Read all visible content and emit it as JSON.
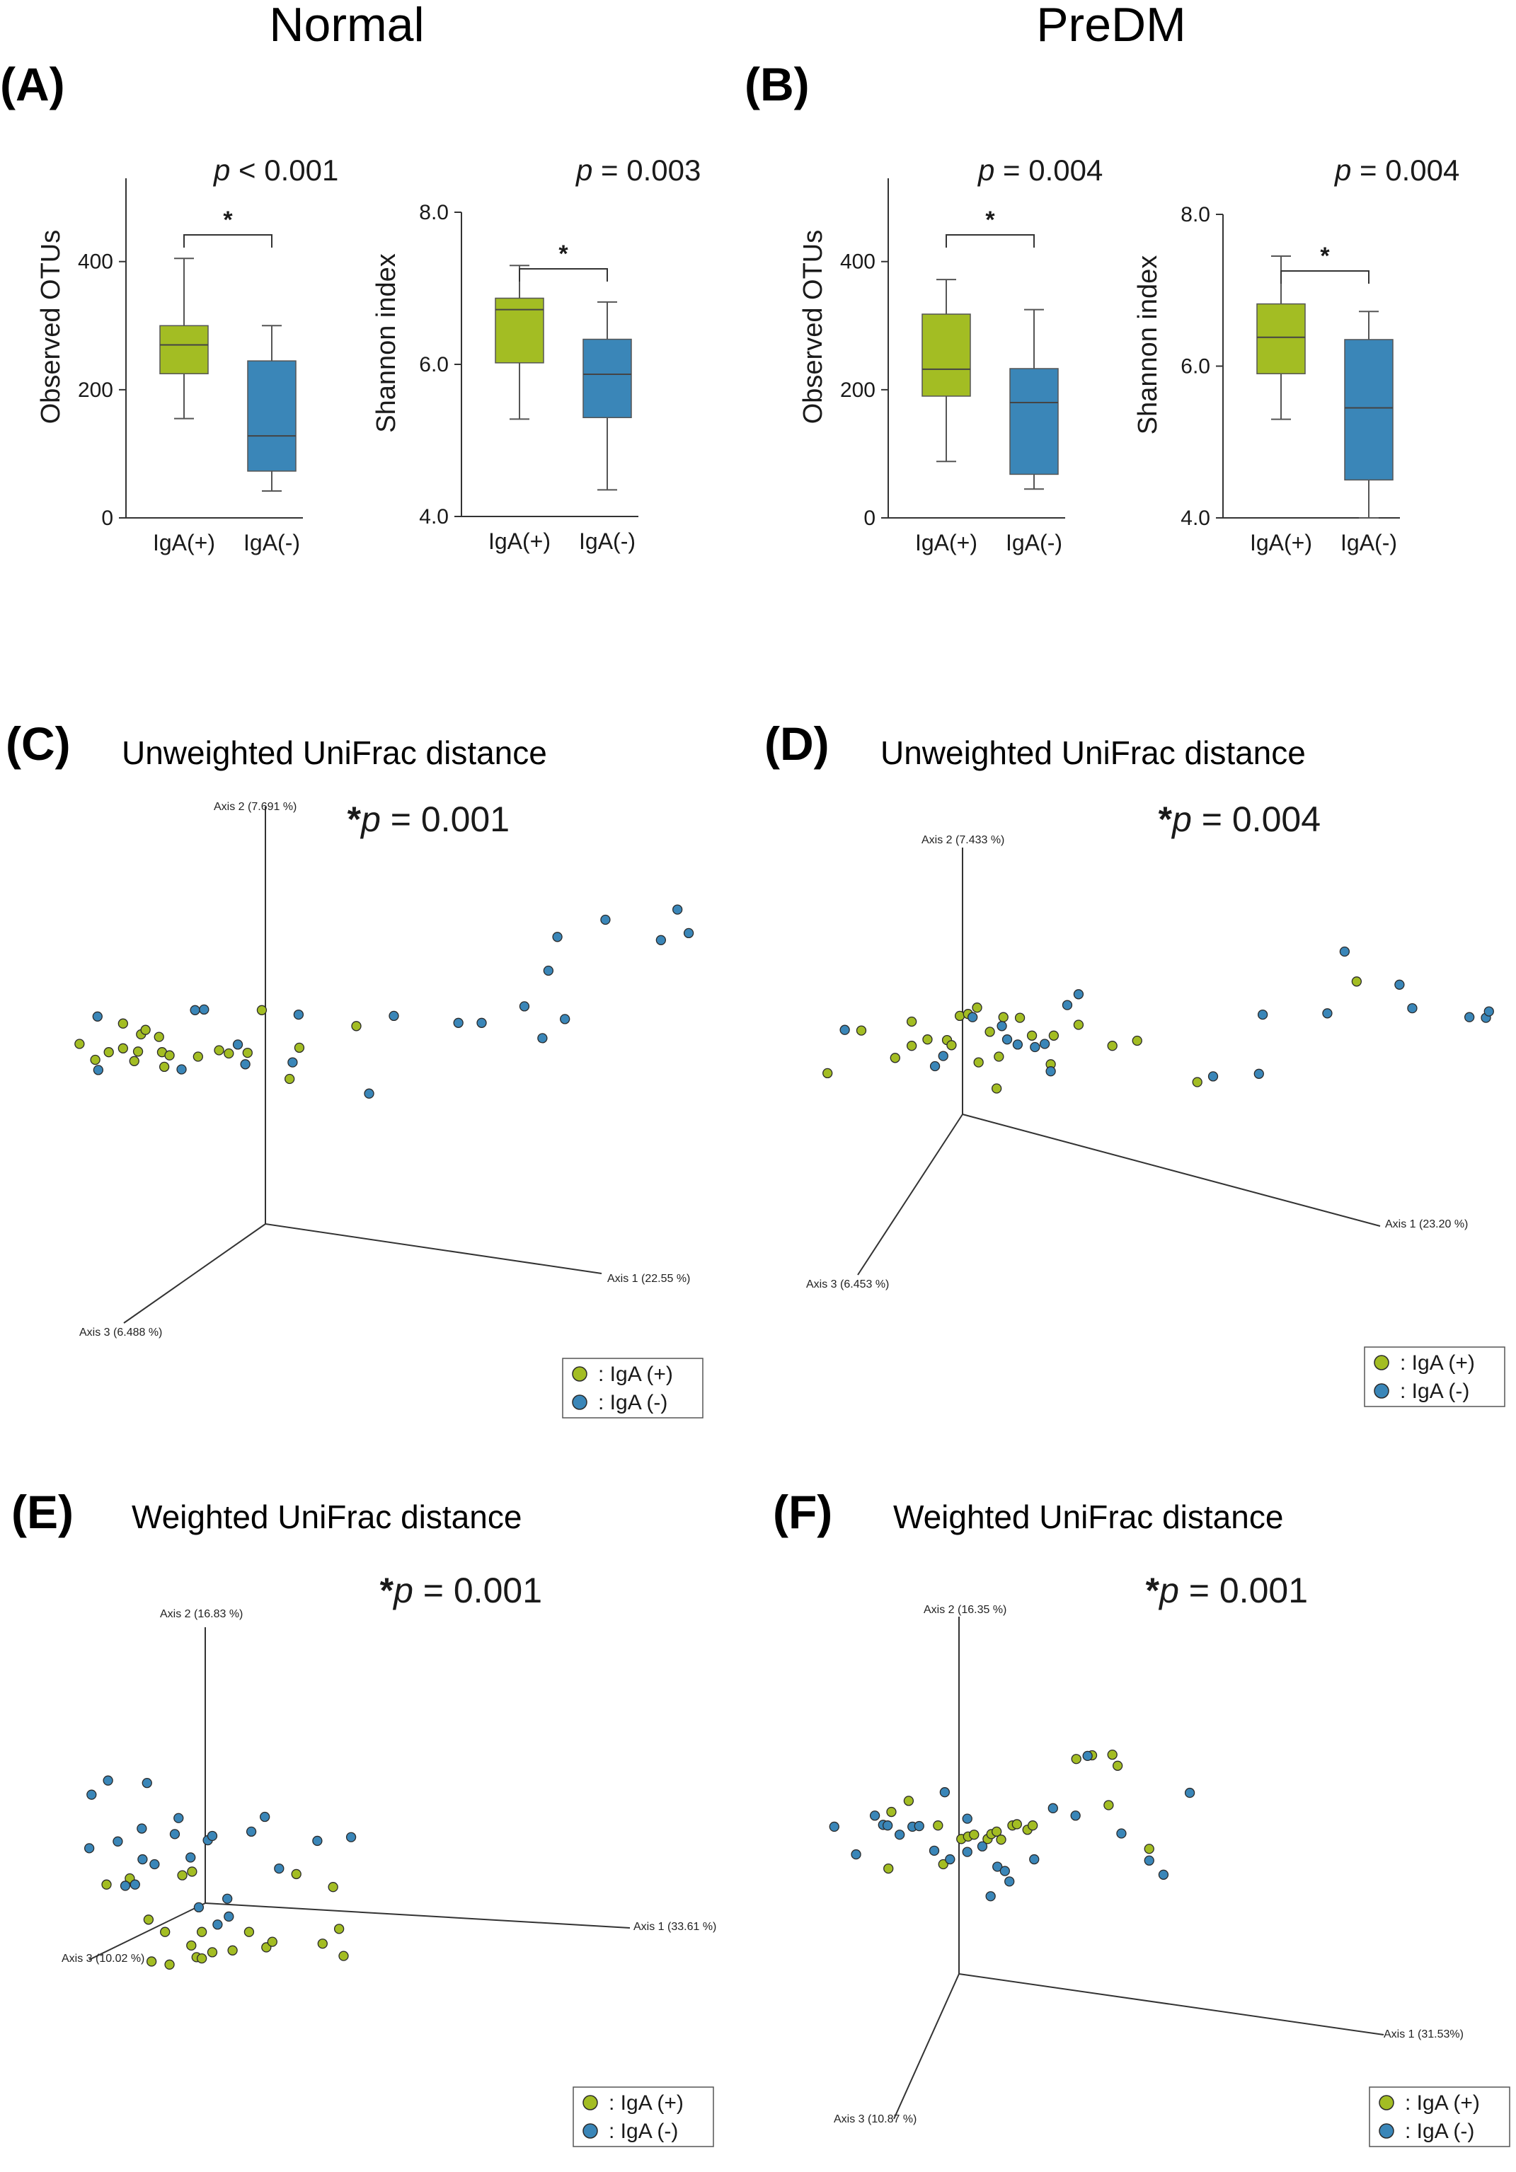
{
  "group_titles": {
    "normal": "Normal",
    "predm": "PreDM"
  },
  "panel_letters": {
    "A": "(A)",
    "B": "(B)",
    "C": "(C)",
    "D": "(D)",
    "E": "(E)",
    "F": "(F)"
  },
  "colors": {
    "iga_pos": "#a3bd23",
    "iga_neg": "#3a86b8",
    "axis": "#333333",
    "text": "#1a1a1a"
  },
  "legend": {
    "pos_label": ": IgA (+)",
    "neg_label": ": IgA (-)"
  },
  "chart_data": [
    {
      "id": "A-observed",
      "type": "box",
      "title": "",
      "ylabel": "Observed OTUs",
      "xlabel": "",
      "ylim": [
        0,
        530
      ],
      "yticks": [
        0,
        200,
        400
      ],
      "ytick_labels": [
        "0",
        "200",
        "400"
      ],
      "p_prefix": "p",
      "p_text": " < 0.001",
      "significance": "*",
      "categories": [
        "IgA(+)",
        "IgA(-)"
      ],
      "boxes": [
        {
          "name": "IgA(+)",
          "whisker_low": 155,
          "q1": 225,
          "median": 270,
          "q3": 300,
          "whisker_high": 405
        },
        {
          "name": "IgA(-)",
          "whisker_low": 42,
          "q1": 73,
          "median": 128,
          "q3": 245,
          "whisker_high": 300
        }
      ]
    },
    {
      "id": "A-shannon",
      "type": "box",
      "title": "",
      "ylabel": "Shannon index",
      "xlabel": "",
      "ylim": [
        4.0,
        8.0
      ],
      "yticks": [
        4.0,
        6.0,
        8.0
      ],
      "ytick_labels": [
        "4.0",
        "6.0",
        "8.0"
      ],
      "p_prefix": "p",
      "p_text": " = 0.003",
      "significance": "*",
      "categories": [
        "IgA(+)",
        "IgA(-)"
      ],
      "boxes": [
        {
          "name": "IgA(+)",
          "whisker_low": 5.28,
          "q1": 6.02,
          "median": 6.72,
          "q3": 6.87,
          "whisker_high": 7.3
        },
        {
          "name": "IgA(-)",
          "whisker_low": 4.35,
          "q1": 5.3,
          "median": 5.87,
          "q3": 6.33,
          "whisker_high": 6.82
        }
      ]
    },
    {
      "id": "B-observed",
      "type": "box",
      "title": "",
      "ylabel": "Observed OTUs",
      "xlabel": "",
      "ylim": [
        0,
        530
      ],
      "yticks": [
        0,
        200,
        400
      ],
      "ytick_labels": [
        "0",
        "200",
        "400"
      ],
      "p_prefix": "p",
      "p_text": " = 0.004",
      "significance": "*",
      "categories": [
        "IgA(+)",
        "IgA(-)"
      ],
      "boxes": [
        {
          "name": "IgA(+)",
          "whisker_low": 88,
          "q1": 190,
          "median": 232,
          "q3": 318,
          "whisker_high": 372
        },
        {
          "name": "IgA(-)",
          "whisker_low": 45,
          "q1": 68,
          "median": 180,
          "q3": 233,
          "whisker_high": 325
        }
      ]
    },
    {
      "id": "B-shannon",
      "type": "box",
      "title": "",
      "ylabel": "Shannon index",
      "xlabel": "",
      "ylim": [
        4.0,
        8.0
      ],
      "yticks": [
        4.0,
        6.0,
        8.0
      ],
      "ytick_labels": [
        "4.0",
        "6.0",
        "8.0"
      ],
      "p_prefix": "p",
      "p_text": " = 0.004",
      "significance": "*",
      "categories": [
        "IgA(+)",
        "IgA(-)"
      ],
      "boxes": [
        {
          "name": "IgA(+)",
          "whisker_low": 5.3,
          "q1": 5.9,
          "median": 6.38,
          "q3": 6.82,
          "whisker_high": 7.45
        },
        {
          "name": "IgA(-)",
          "whisker_low": 4.0,
          "q1": 4.5,
          "median": 5.45,
          "q3": 6.35,
          "whisker_high": 6.72
        }
      ]
    },
    {
      "id": "C",
      "type": "scatter",
      "projection": "3d-pcoa",
      "title": "Unweighted UniFrac distance",
      "p_prefix": "*p",
      "p_text": " = 0.001",
      "axes": {
        "axis1": "Axis 1 (22.55 %)",
        "axis2": "Axis 2 (7.691 %)",
        "axis3": "Axis 3 (6.488 %)"
      },
      "series": [
        {
          "name": "IgA (+)",
          "points": [
            [
              0.106,
              0.605
            ],
            [
              0.127,
              0.58
            ],
            [
              0.145,
              0.592
            ],
            [
              0.164,
              0.637
            ],
            [
              0.164,
              0.598
            ],
            [
              0.179,
              0.578
            ],
            [
              0.184,
              0.593
            ],
            [
              0.188,
              0.62
            ],
            [
              0.194,
              0.627
            ],
            [
              0.212,
              0.616
            ],
            [
              0.216,
              0.592
            ],
            [
              0.219,
              0.569
            ],
            [
              0.226,
              0.587
            ],
            [
              0.264,
              0.585
            ],
            [
              0.292,
              0.595
            ],
            [
              0.305,
              0.59
            ],
            [
              0.33,
              0.591
            ],
            [
              0.349,
              0.658
            ],
            [
              0.386,
              0.55
            ],
            [
              0.399,
              0.599
            ],
            [
              0.475,
              0.633
            ]
          ]
        },
        {
          "name": "IgA (-)",
          "points": [
            [
              0.131,
              0.564
            ],
            [
              0.13,
              0.648
            ],
            [
              0.242,
              0.565
            ],
            [
              0.26,
              0.658
            ],
            [
              0.272,
              0.659
            ],
            [
              0.317,
              0.604
            ],
            [
              0.327,
              0.573
            ],
            [
              0.39,
              0.576
            ],
            [
              0.398,
              0.651
            ],
            [
              0.492,
              0.527
            ],
            [
              0.525,
              0.649
            ],
            [
              0.611,
              0.638
            ],
            [
              0.642,
              0.638
            ],
            [
              0.699,
              0.664
            ],
            [
              0.723,
              0.614
            ],
            [
              0.753,
              0.644
            ],
            [
              0.731,
              0.72
            ],
            [
              0.743,
              0.773
            ],
            [
              0.807,
              0.8
            ],
            [
              0.881,
              0.768
            ],
            [
              0.903,
              0.816
            ],
            [
              0.918,
              0.779
            ]
          ]
        }
      ]
    },
    {
      "id": "D",
      "type": "scatter",
      "projection": "3d-pcoa",
      "title": "Unweighted UniFrac distance",
      "p_prefix": "*p",
      "p_text": " = 0.004",
      "axes": {
        "axis1": "Axis 1 (23.20 %)",
        "axis2": "Axis 2 (7.433 %)",
        "axis3": "Axis 3 (6.453 %)"
      },
      "series": [
        {
          "name": "IgA (+)",
          "points": [
            [
              0.084,
              0.559
            ],
            [
              0.129,
              0.626
            ],
            [
              0.174,
              0.583
            ],
            [
              0.196,
              0.64
            ],
            [
              0.196,
              0.602
            ],
            [
              0.217,
              0.612
            ],
            [
              0.243,
              0.611
            ],
            [
              0.249,
              0.603
            ],
            [
              0.26,
              0.649
            ],
            [
              0.271,
              0.652
            ],
            [
              0.283,
              0.662
            ],
            [
              0.285,
              0.576
            ],
            [
              0.3,
              0.624
            ],
            [
              0.309,
              0.535
            ],
            [
              0.312,
              0.585
            ],
            [
              0.318,
              0.647
            ],
            [
              0.34,
              0.646
            ],
            [
              0.356,
              0.618
            ],
            [
              0.381,
              0.573
            ],
            [
              0.385,
              0.618
            ],
            [
              0.418,
              0.635
            ],
            [
              0.463,
              0.602
            ],
            [
              0.496,
              0.61
            ],
            [
              0.576,
              0.545
            ],
            [
              0.788,
              0.703
            ]
          ]
        },
        {
          "name": "IgA (-)",
          "points": [
            [
              0.107,
              0.627
            ],
            [
              0.227,
              0.57
            ],
            [
              0.238,
              0.586
            ],
            [
              0.277,
              0.647
            ],
            [
              0.316,
              0.633
            ],
            [
              0.323,
              0.612
            ],
            [
              0.337,
              0.604
            ],
            [
              0.36,
              0.6
            ],
            [
              0.373,
              0.605
            ],
            [
              0.381,
              0.562
            ],
            [
              0.403,
              0.666
            ],
            [
              0.418,
              0.683
            ],
            [
              0.597,
              0.554
            ],
            [
              0.658,
              0.558
            ],
            [
              0.663,
              0.651
            ],
            [
              0.749,
              0.653
            ],
            [
              0.772,
              0.75
            ],
            [
              0.845,
              0.698
            ],
            [
              0.862,
              0.661
            ],
            [
              0.938,
              0.647
            ],
            [
              0.96,
              0.646
            ],
            [
              0.964,
              0.656
            ]
          ]
        }
      ]
    },
    {
      "id": "E",
      "type": "scatter",
      "projection": "3d-pcoa",
      "title": "Weighted UniFrac distance",
      "p_prefix": "*p",
      "p_text": " = 0.001",
      "axes": {
        "axis1": "Axis 1 (33.61 %)",
        "axis2": "Axis 2 (16.83 %)",
        "axis3": "Axis 3 (10.02 %)"
      },
      "series": [
        {
          "name": "IgA (+)",
          "points": [
            [
              0.142,
              0.467
            ],
            [
              0.173,
              0.477
            ],
            [
              0.198,
              0.41
            ],
            [
              0.202,
              0.342
            ],
            [
              0.22,
              0.39
            ],
            [
              0.226,
              0.337
            ],
            [
              0.243,
              0.482
            ],
            [
              0.255,
              0.368
            ],
            [
              0.256,
              0.488
            ],
            [
              0.262,
              0.349
            ],
            [
              0.269,
              0.347
            ],
            [
              0.269,
              0.39
            ],
            [
              0.283,
              0.357
            ],
            [
              0.31,
              0.36
            ],
            [
              0.332,
              0.39
            ],
            [
              0.355,
              0.365
            ],
            [
              0.363,
              0.374
            ],
            [
              0.395,
              0.484
            ],
            [
              0.43,
              0.371
            ],
            [
              0.444,
              0.463
            ],
            [
              0.452,
              0.395
            ],
            [
              0.458,
              0.351
            ]
          ]
        },
        {
          "name": "IgA (-)",
          "points": [
            [
              0.119,
              0.526
            ],
            [
              0.122,
              0.613
            ],
            [
              0.144,
              0.636
            ],
            [
              0.157,
              0.537
            ],
            [
              0.167,
              0.465
            ],
            [
              0.18,
              0.467
            ],
            [
              0.189,
              0.558
            ],
            [
              0.19,
              0.508
            ],
            [
              0.196,
              0.632
            ],
            [
              0.206,
              0.5
            ],
            [
              0.233,
              0.549
            ],
            [
              0.238,
              0.575
            ],
            [
              0.254,
              0.511
            ],
            [
              0.265,
              0.43
            ],
            [
              0.277,
              0.539
            ],
            [
              0.283,
              0.546
            ],
            [
              0.29,
              0.402
            ],
            [
              0.303,
              0.444
            ],
            [
              0.305,
              0.415
            ],
            [
              0.335,
              0.553
            ],
            [
              0.353,
              0.577
            ],
            [
              0.372,
              0.493
            ],
            [
              0.423,
              0.538
            ],
            [
              0.468,
              0.544
            ]
          ]
        }
      ]
    },
    {
      "id": "F",
      "type": "scatter",
      "projection": "3d-pcoa",
      "title": "Weighted UniFrac distance",
      "p_prefix": "*p",
      "p_text": " = 0.001",
      "axes": {
        "axis1": "Axis 1 (31.53%)",
        "axis2": "Axis 2 (16.35 %)",
        "axis3": "Axis 3 (10.87 %)"
      },
      "series": [
        {
          "name": "IgA (+)",
          "points": [
            [
              0.165,
              0.493
            ],
            [
              0.169,
              0.585
            ],
            [
              0.192,
              0.603
            ],
            [
              0.231,
              0.563
            ],
            [
              0.238,
              0.5
            ],
            [
              0.262,
              0.541
            ],
            [
              0.271,
              0.545
            ],
            [
              0.279,
              0.548
            ],
            [
              0.297,
              0.541
            ],
            [
              0.302,
              0.549
            ],
            [
              0.309,
              0.553
            ],
            [
              0.315,
              0.54
            ],
            [
              0.33,
              0.563
            ],
            [
              0.336,
              0.565
            ],
            [
              0.35,
              0.556
            ],
            [
              0.357,
              0.563
            ],
            [
              0.415,
              0.671
            ],
            [
              0.436,
              0.677
            ],
            [
              0.458,
              0.596
            ],
            [
              0.463,
              0.678
            ],
            [
              0.47,
              0.66
            ],
            [
              0.512,
              0.525
            ]
          ]
        },
        {
          "name": "IgA (-)",
          "points": [
            [
              0.093,
              0.561
            ],
            [
              0.122,
              0.516
            ],
            [
              0.147,
              0.579
            ],
            [
              0.158,
              0.564
            ],
            [
              0.164,
              0.563
            ],
            [
              0.18,
              0.548
            ],
            [
              0.197,
              0.561
            ],
            [
              0.206,
              0.562
            ],
            [
              0.226,
              0.522
            ],
            [
              0.24,
              0.617
            ],
            [
              0.247,
              0.508
            ],
            [
              0.27,
              0.574
            ],
            [
              0.27,
              0.52
            ],
            [
              0.29,
              0.529
            ],
            [
              0.301,
              0.448
            ],
            [
              0.31,
              0.496
            ],
            [
              0.32,
              0.489
            ],
            [
              0.326,
              0.472
            ],
            [
              0.359,
              0.508
            ],
            [
              0.384,
              0.591
            ],
            [
              0.414,
              0.579
            ],
            [
              0.43,
              0.676
            ],
            [
              0.475,
              0.55
            ],
            [
              0.512,
              0.506
            ],
            [
              0.531,
              0.483
            ],
            [
              0.566,
              0.616
            ]
          ]
        }
      ]
    }
  ]
}
